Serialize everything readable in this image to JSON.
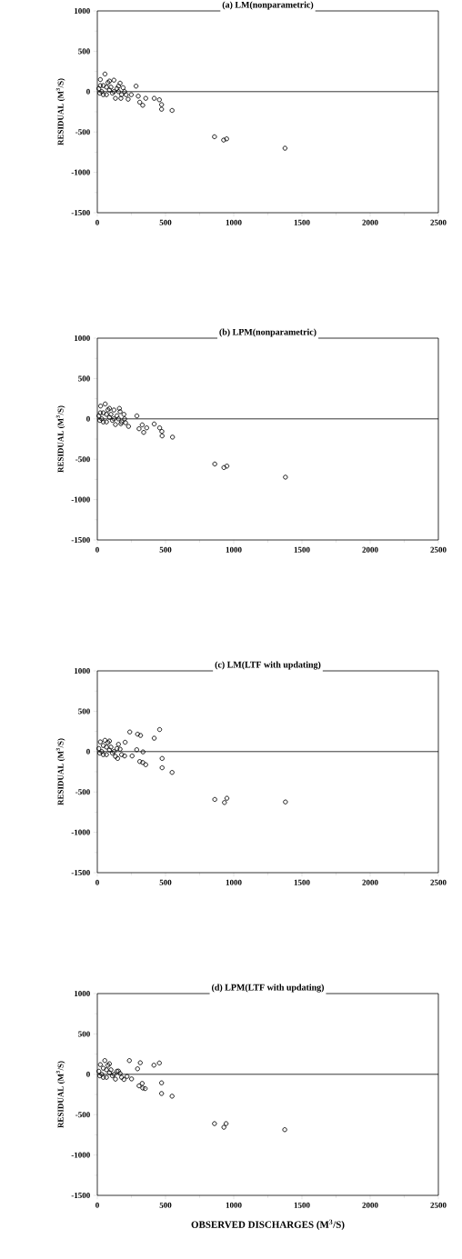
{
  "chart_data": [
    {
      "type": "scatter",
      "title": "(a)  LM(nonparametric)",
      "ylabel": "RESIDUAL  (M$^{3}$/S)",
      "color": "#000000",
      "marker": "circle",
      "x": [
        11,
        18,
        22,
        22,
        33,
        44,
        44,
        56,
        67,
        67,
        78,
        89,
        89,
        100,
        111,
        122,
        122,
        133,
        144,
        155,
        155,
        167,
        173,
        178,
        189,
        200,
        211,
        226,
        249,
        284,
        300,
        311,
        333,
        355,
        417,
        455,
        471,
        471,
        548,
        859,
        926,
        948,
        1376
      ],
      "values": [
        38,
        -19,
        150,
        75,
        0,
        75,
        -38,
        218,
        56,
        -38,
        112,
        19,
        131,
        56,
        -19,
        142,
        0,
        -83,
        38,
        0,
        68,
        105,
        -83,
        -38,
        49,
        0,
        -38,
        -94,
        -38,
        68,
        -56,
        -131,
        -169,
        -83,
        -83,
        -101,
        -161,
        -218,
        -233,
        -559,
        -600,
        -585,
        -701
      ],
      "xlim": [
        0,
        2500
      ],
      "ylim": [
        -1500,
        1000
      ],
      "xticks": [
        0,
        500,
        1000,
        1500,
        2000,
        2500
      ],
      "yticks": [
        -1500,
        -1000,
        -500,
        0,
        500,
        1000
      ],
      "ref_lines": [
        {
          "axis": "y",
          "value": 0,
          "color": "#000000"
        }
      ]
    },
    {
      "type": "scatter",
      "title": "(b)  LPM(nonparametric)",
      "ylabel": "RESIDUAL  (M$^{3}$/S)",
      "color": "#000000",
      "marker": "circle",
      "x": [
        11,
        18,
        24,
        22,
        33,
        44,
        44,
        58,
        67,
        67,
        78,
        89,
        89,
        100,
        111,
        122,
        122,
        133,
        144,
        155,
        162,
        167,
        173,
        178,
        195,
        200,
        207,
        229,
        290,
        306,
        329,
        340,
        362,
        417,
        457,
        473,
        475,
        551,
        861,
        928,
        950,
        1379
      ],
      "values": [
        38,
        -19,
        159,
        75,
        0,
        75,
        -38,
        185,
        56,
        -38,
        112,
        19,
        131,
        56,
        -19,
        110,
        0,
        -70,
        38,
        0,
        130,
        90,
        -60,
        -38,
        56,
        0,
        -48,
        -93,
        37,
        -122,
        -74,
        -167,
        -111,
        -63,
        -111,
        -155,
        -211,
        -226,
        -559,
        -603,
        -585,
        -722
      ],
      "xlim": [
        0,
        2500
      ],
      "ylim": [
        -1500,
        1000
      ],
      "xticks": [
        0,
        500,
        1000,
        1500,
        2000,
        2500
      ],
      "yticks": [
        -1500,
        -1000,
        -500,
        0,
        500,
        1000
      ],
      "ref_lines": [
        {
          "axis": "y",
          "value": 0,
          "color": "#000000"
        }
      ]
    },
    {
      "type": "scatter",
      "title": "(c)  LM(LTF  with  updating)",
      "ylabel": "RESIDUAL  (M$^{3}$/S)",
      "color": "#000000",
      "marker": "circle",
      "x": [
        11,
        18,
        22,
        33,
        44,
        44,
        56,
        67,
        67,
        78,
        89,
        89,
        100,
        111,
        122,
        133,
        144,
        149,
        155,
        167,
        178,
        200,
        204,
        238,
        255,
        289,
        295,
        311,
        317,
        333,
        335,
        355,
        417,
        457,
        475,
        475,
        548,
        861,
        932,
        950,
        1379
      ],
      "values": [
        38,
        -19,
        120,
        0,
        75,
        -38,
        140,
        56,
        -38,
        112,
        19,
        131,
        56,
        -19,
        0,
        -60,
        38,
        -85,
        90,
        30,
        -38,
        -54,
        116,
        243,
        -54,
        23,
        216,
        -123,
        200,
        -135,
        -4,
        -162,
        166,
        273,
        -85,
        -200,
        -258,
        -593,
        -631,
        -578,
        -624
      ],
      "xlim": [
        0,
        2500
      ],
      "ylim": [
        -1500,
        1000
      ],
      "xticks": [
        0,
        500,
        1000,
        1500,
        2000,
        2500
      ],
      "yticks": [
        -1500,
        -1000,
        -500,
        0,
        500,
        1000
      ],
      "ref_lines": [
        {
          "axis": "y",
          "value": 0,
          "color": "#000000"
        }
      ]
    },
    {
      "type": "scatter",
      "title": "(d)  LPM(LTF  with  updating)",
      "ylabel": "RESIDUAL  (M$^{3}$/S)",
      "xlabel": "OBSERVED  DISCHARGES  (M$^{3}$/S)",
      "color": "#000000",
      "marker": "circle",
      "x": [
        11,
        18,
        22,
        33,
        44,
        44,
        55,
        67,
        67,
        78,
        89,
        89,
        100,
        111,
        122,
        133,
        144,
        155,
        167,
        178,
        195,
        218,
        235,
        251,
        295,
        306,
        315,
        329,
        333,
        351,
        415,
        455,
        471,
        471,
        548,
        859,
        928,
        944,
        1374
      ],
      "values": [
        38,
        -19,
        120,
        0,
        75,
        -38,
        170,
        56,
        -38,
        112,
        19,
        131,
        56,
        -19,
        0,
        -60,
        38,
        40,
        10,
        -38,
        -64,
        -26,
        170,
        -57,
        68,
        -143,
        143,
        -113,
        -170,
        -177,
        113,
        140,
        -106,
        -238,
        -271,
        -611,
        -656,
        -611,
        -686
      ],
      "xlim": [
        0,
        2500
      ],
      "ylim": [
        -1500,
        1000
      ],
      "xticks": [
        0,
        500,
        1000,
        1500,
        2000,
        2500
      ],
      "yticks": [
        -1500,
        -1000,
        -500,
        0,
        500,
        1000
      ],
      "ref_lines": [
        {
          "axis": "y",
          "value": 0,
          "color": "#000000"
        }
      ]
    }
  ]
}
